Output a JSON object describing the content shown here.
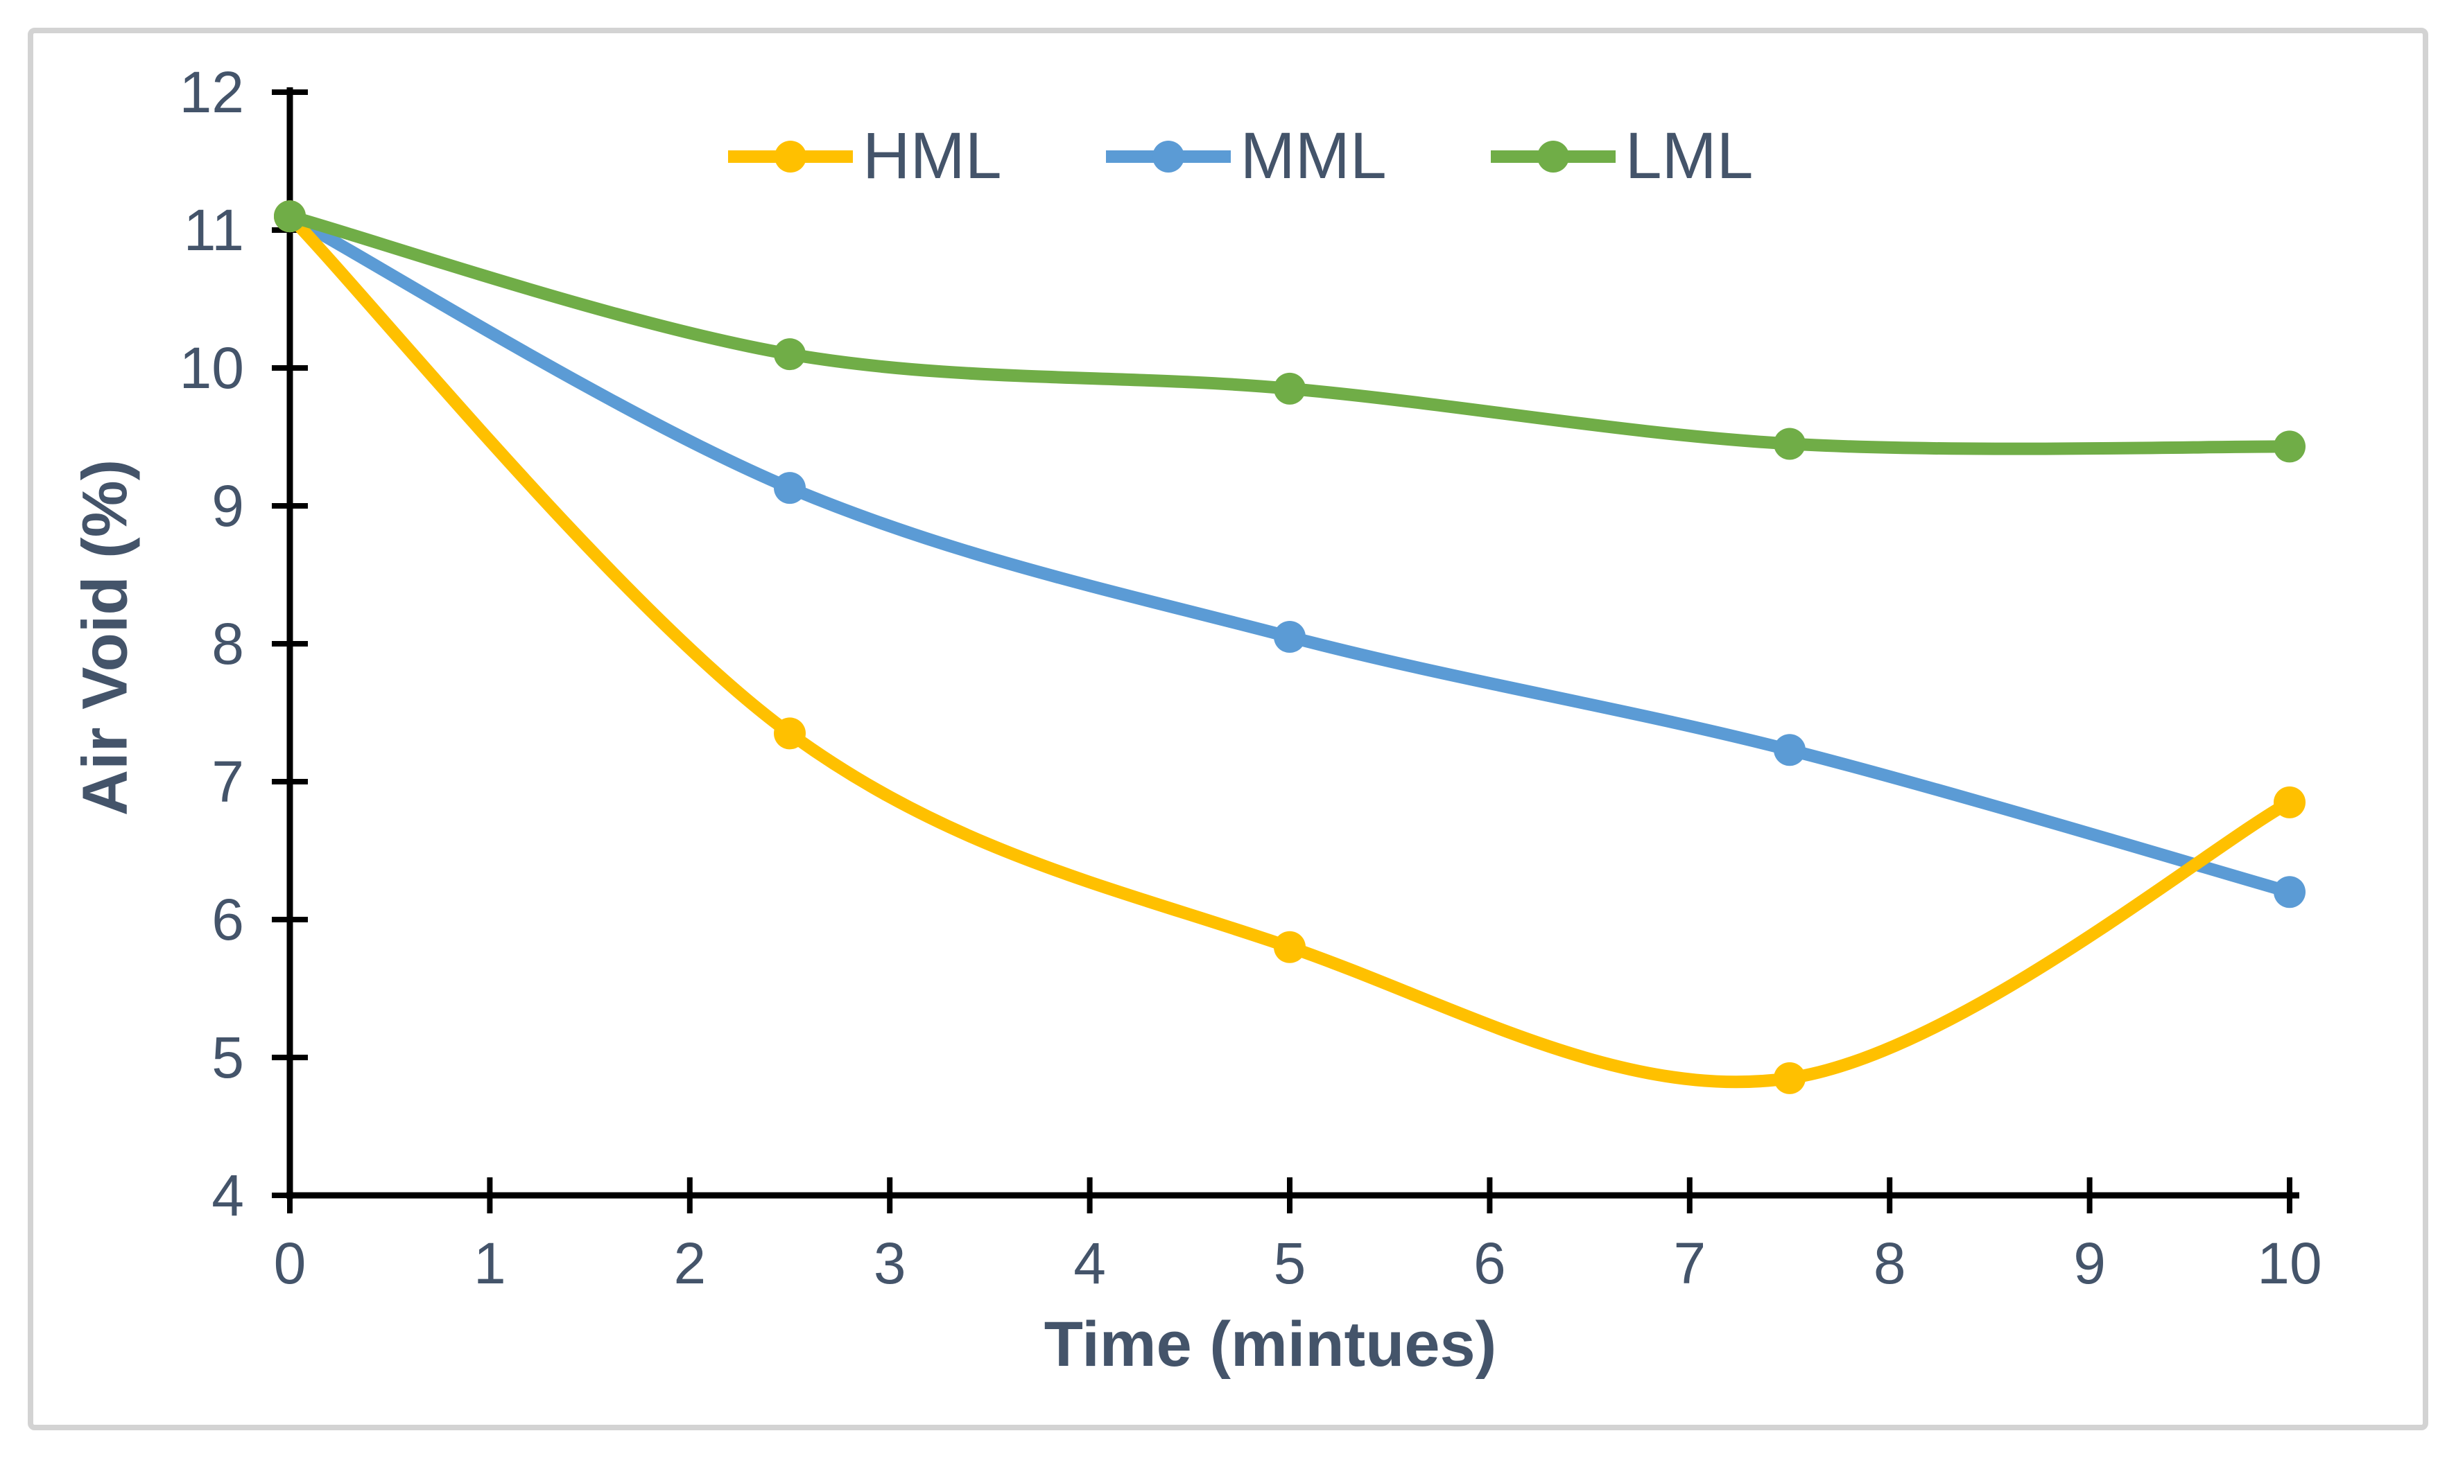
{
  "chart_data": {
    "type": "line",
    "title": "",
    "xlabel": "Time (mintues)",
    "ylabel": "Air Void (%)",
    "x": [
      0,
      2.5,
      5,
      7.5,
      10
    ],
    "series": [
      {
        "name": "HML",
        "color": "#FFC000",
        "values": [
          11.1,
          7.35,
          5.8,
          4.85,
          6.85
        ]
      },
      {
        "name": "MML",
        "color": "#5B9BD5",
        "values": [
          11.1,
          9.13,
          8.05,
          7.23,
          6.2
        ]
      },
      {
        "name": "LML",
        "color": "#70AD47",
        "values": [
          11.1,
          10.1,
          9.85,
          9.45,
          9.43
        ]
      }
    ],
    "xlim": [
      0,
      10
    ],
    "ylim": [
      4,
      12
    ],
    "x_ticks": [
      0,
      1,
      2,
      3,
      4,
      5,
      6,
      7,
      8,
      9,
      10
    ],
    "y_ticks": [
      4,
      5,
      6,
      7,
      8,
      9,
      10,
      11,
      12
    ],
    "grid": false,
    "smooth": true,
    "markers": true,
    "legend_position": "top-center",
    "axis_color": "#000000",
    "text_color": "#44546A",
    "frame_border_color": "#D3D3D3",
    "background": "#FFFFFF"
  }
}
